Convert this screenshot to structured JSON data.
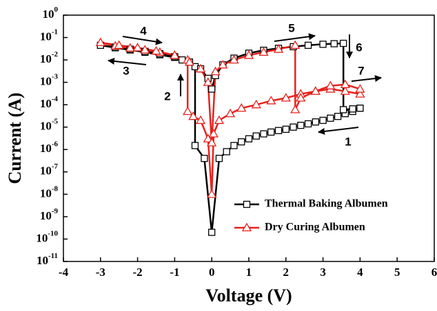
{
  "chart_data": {
    "type": "line",
    "x_label": "Voltage (V)",
    "y_label": "Current (A)",
    "xlim": [
      -4,
      6
    ],
    "xticks": [
      -4,
      -3,
      -2,
      -1,
      0,
      1,
      2,
      3,
      4,
      5,
      6
    ],
    "ylim": [
      1e-11,
      1
    ],
    "log_y": true,
    "yticks": [
      {
        "value": 1,
        "label": "10^0"
      },
      {
        "value": 0.1,
        "label": "10^-1"
      },
      {
        "value": 0.01,
        "label": "10^-2"
      },
      {
        "value": 0.001,
        "label": "10^-3"
      },
      {
        "value": 0.0001,
        "label": "10^-4"
      },
      {
        "value": 1e-05,
        "label": "10^-5"
      },
      {
        "value": 1e-06,
        "label": "10^-6"
      },
      {
        "value": 1e-07,
        "label": "10^-7"
      },
      {
        "value": 1e-08,
        "label": "10^-8"
      },
      {
        "value": 1e-09,
        "label": "10^-9"
      },
      {
        "value": 1e-10,
        "label": "10^-10"
      },
      {
        "value": 1e-11,
        "label": "10^-11"
      }
    ],
    "legend": "lower right",
    "annotations": [
      "1",
      "2",
      "3",
      "4",
      "5",
      "6",
      "7"
    ],
    "series": [
      {
        "name": "Thermal Baking Albumen",
        "color": "#000000",
        "marker": "square",
        "x": [
          4,
          3.8,
          3.6,
          3.4,
          3.2,
          3.0,
          2.8,
          2.6,
          2.4,
          2.2,
          2.0,
          1.8,
          1.6,
          1.4,
          1.2,
          1.0,
          0.8,
          0.6,
          0.4,
          0.2,
          0,
          -0.2,
          -0.45,
          -0.45,
          -0.6,
          -0.8,
          -1.0,
          -1.4,
          -1.8,
          -2.2,
          -2.6,
          -3.0,
          -2.6,
          -2.2,
          -1.8,
          -1.4,
          -1.0,
          -0.6,
          -0.3,
          -0.1,
          0,
          0.1,
          0.3,
          0.6,
          1.0,
          1.4,
          1.8,
          2.2,
          2.6,
          3.0,
          3.3,
          3.55,
          3.55,
          3.8,
          4.0
        ],
        "values": [
          7e-05,
          5e-05,
          4e-05,
          3e-05,
          2.5e-05,
          2e-05,
          1.7e-05,
          1.4e-05,
          1.2e-05,
          1e-05,
          8e-06,
          7e-06,
          6e-06,
          5e-06,
          4e-06,
          3e-06,
          2.2e-06,
          1.5e-06,
          8e-07,
          4e-07,
          2e-10,
          4e-07,
          1.5e-06,
          0.005,
          0.008,
          0.01,
          0.013,
          0.017,
          0.022,
          0.028,
          0.035,
          0.045,
          0.037,
          0.03,
          0.024,
          0.019,
          0.014,
          0.008,
          0.004,
          0.0015,
          0.0005,
          0.002,
          0.006,
          0.012,
          0.02,
          0.027,
          0.033,
          0.039,
          0.045,
          0.05,
          0.053,
          0.055,
          6e-05,
          6.5e-05,
          7e-05
        ]
      },
      {
        "name": "Dry Curing Albumen",
        "color": "#e8211c",
        "marker": "triangle",
        "x": [
          4,
          3.6,
          3.2,
          2.8,
          2.4,
          2.0,
          1.6,
          1.2,
          0.8,
          0.5,
          0.2,
          0.05,
          0,
          -0.1,
          -0.3,
          -0.5,
          -0.65,
          -0.65,
          -1.0,
          -1.4,
          -1.8,
          -2.2,
          -2.6,
          -3.0,
          -2.5,
          -2.0,
          -1.5,
          -1.0,
          -0.6,
          -0.3,
          -0.1,
          0,
          0.1,
          0.3,
          0.6,
          1.0,
          1.4,
          1.8,
          2.25,
          2.25,
          2.4,
          2.8,
          3.2,
          3.6,
          4.0
        ],
        "values": [
          0.0003,
          0.0004,
          0.0005,
          0.0004,
          0.0003,
          0.0002,
          0.00015,
          0.0001,
          7e-05,
          4e-05,
          2e-05,
          5e-06,
          1e-08,
          3e-06,
          2e-05,
          3e-05,
          5e-05,
          0.01,
          0.016,
          0.022,
          0.028,
          0.034,
          0.042,
          0.06,
          0.045,
          0.035,
          0.025,
          0.016,
          0.008,
          0.004,
          0.001,
          2e-06,
          0.003,
          0.006,
          0.01,
          0.016,
          0.022,
          0.03,
          0.045,
          6e-05,
          0.0002,
          0.0004,
          0.0007,
          0.0008,
          0.0005
        ]
      }
    ]
  }
}
